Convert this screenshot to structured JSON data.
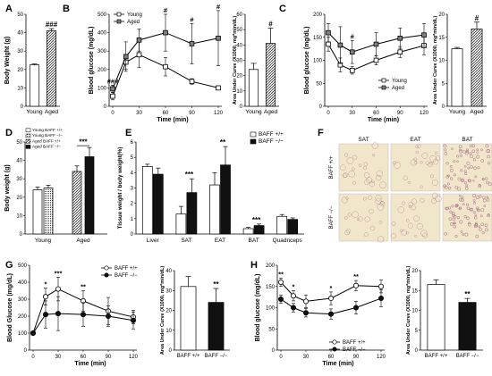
{
  "letters": {
    "A": "A",
    "B": "B",
    "C": "C",
    "D": "D",
    "E": "E",
    "F": "F",
    "G": "G",
    "H": "H"
  },
  "colors": {
    "white": "#ffffff",
    "black": "#111111",
    "grey": "#808080",
    "hatch": "#5a5a5a",
    "tissue": "#f1e6c9",
    "stain": "#a46a8a"
  },
  "panelA": {
    "type": "bar",
    "categories": [
      "Young",
      "Aged"
    ],
    "values": [
      22.5,
      41
    ],
    "errors": [
      0.5,
      1.2
    ],
    "ylabel": "Body Weight (g)",
    "ylim": [
      0,
      50
    ],
    "yticks": [
      0,
      10,
      20,
      30,
      40,
      50
    ],
    "annotations": [
      "",
      "###"
    ]
  },
  "panelB": {
    "type": "line",
    "x": [
      0,
      15,
      30,
      60,
      90,
      120
    ],
    "xlabel": "Time (min)",
    "ylabel": "Blood glucose (mg/dL)",
    "ylim": [
      0,
      500
    ],
    "yticks": [
      0,
      100,
      200,
      300,
      400,
      500
    ],
    "xticks": [
      0,
      30,
      60,
      90,
      120
    ],
    "series": [
      {
        "name": "Young",
        "values": [
          55,
          240,
          280,
          215,
          135,
          100
        ],
        "errors": [
          20,
          40,
          70,
          50,
          15,
          10
        ]
      },
      {
        "name": "Aged",
        "values": [
          95,
          270,
          360,
          400,
          340,
          370
        ],
        "errors": [
          20,
          80,
          60,
          100,
          110,
          150
        ]
      }
    ],
    "annotations": [
      "###",
      "",
      "",
      "#",
      "#",
      "#"
    ]
  },
  "panelB_auc": {
    "type": "bar",
    "categories": [
      "Young",
      "Aged"
    ],
    "values": [
      24,
      41
    ],
    "errors": [
      4,
      10
    ],
    "ylabel": "Area Under Curve (X1000, mg*min/dL)",
    "ylim": [
      0,
      60
    ],
    "yticks": [
      0,
      10,
      20,
      30,
      40,
      50,
      60
    ],
    "annotations": [
      "",
      "#"
    ]
  },
  "panelC": {
    "type": "line",
    "x": [
      0,
      15,
      30,
      60,
      90,
      120
    ],
    "xlabel": "Time (min)",
    "ylabel": "Blood glucose (mg/dL)",
    "ylim": [
      0,
      200
    ],
    "yticks": [
      0,
      50,
      100,
      150,
      200
    ],
    "xticks": [
      0,
      30,
      60,
      90,
      120
    ],
    "series": [
      {
        "name": "Young",
        "values": [
          135,
          90,
          78,
          100,
          118,
          132
        ],
        "errors": [
          15,
          15,
          8,
          10,
          12,
          20
        ]
      },
      {
        "name": "Aged",
        "values": [
          160,
          133,
          118,
          135,
          148,
          155
        ],
        "errors": [
          20,
          40,
          25,
          25,
          22,
          25
        ]
      }
    ],
    "annotations": [
      "",
      "",
      "#",
      "",
      "",
      ""
    ]
  },
  "panelC_auc": {
    "type": "bar",
    "categories": [
      "Young",
      "Aged"
    ],
    "values": [
      12.5,
      16.8
    ],
    "errors": [
      0.3,
      1.5
    ],
    "ylabel": "Area Under Curve (X1000, mg*min/dL)",
    "ylim": [
      0,
      20
    ],
    "yticks": [
      0,
      5,
      10,
      15,
      20
    ],
    "annotations": [
      "",
      "#"
    ]
  },
  "panelD": {
    "type": "bar",
    "groups": [
      "Young",
      "Aged"
    ],
    "ylabel": "Body weight (g)",
    "ylim": [
      0,
      50
    ],
    "yticks": [
      0,
      10,
      20,
      30,
      40,
      50
    ],
    "series": [
      {
        "name": "Young BAFF +/+",
        "values": [
          24,
          null
        ],
        "errors": [
          1.5,
          null
        ]
      },
      {
        "name": "Young BAFF −/−",
        "values": [
          25,
          null
        ],
        "errors": [
          1.5,
          null
        ]
      },
      {
        "name": "Aged BAFF +/+",
        "values": [
          null,
          34
        ],
        "errors": [
          null,
          3
        ]
      },
      {
        "name": "Aged BAFF −/−",
        "values": [
          null,
          42
        ],
        "errors": [
          null,
          5
        ]
      }
    ],
    "annotations": [
      "***"
    ]
  },
  "panelE": {
    "type": "bar",
    "categories": [
      "Liver",
      "SAT",
      "EAT",
      "BAT",
      "Quadriceps"
    ],
    "ylabel": "Tissue weight / body weight(%)",
    "ylim": [
      0,
      6
    ],
    "yticks": [
      0,
      1,
      2,
      3,
      4,
      5,
      6
    ],
    "series": [
      {
        "name": "BAFF +/+",
        "values": [
          4.4,
          1.3,
          3.2,
          0.35,
          1.15
        ],
        "errors": [
          0.15,
          0.5,
          0.8,
          0.08,
          0.12
        ]
      },
      {
        "name": "BAFF −/−",
        "values": [
          3.9,
          2.7,
          4.5,
          0.55,
          0.95
        ],
        "errors": [
          0.4,
          0.9,
          1.2,
          0.1,
          0.1
        ]
      }
    ],
    "annotations": [
      "",
      "***",
      "**",
      "***",
      ""
    ]
  },
  "panelF": {
    "columns": [
      "SAT",
      "EAT",
      "BAT"
    ],
    "rows": [
      "BAFF +/+",
      "BAFF −/−"
    ]
  },
  "panelG": {
    "type": "line",
    "x": [
      0,
      15,
      30,
      60,
      90,
      120
    ],
    "xlabel": "Time (min)",
    "ylabel": "Blood Glucose (mg/dL)",
    "ylim": [
      0,
      500
    ],
    "yticks": [
      0,
      100,
      200,
      300,
      400,
      500
    ],
    "xticks": [
      0,
      30,
      60,
      90,
      120
    ],
    "series": [
      {
        "name": "BAFF +/+",
        "values": [
          100,
          315,
          360,
          290,
          230,
          195
        ],
        "errors": [
          10,
          50,
          70,
          60,
          80,
          40
        ]
      },
      {
        "name": "BAFF −/−",
        "values": [
          100,
          210,
          215,
          210,
          200,
          175
        ],
        "errors": [
          10,
          80,
          100,
          70,
          60,
          50
        ]
      }
    ],
    "annotations": [
      "",
      "*",
      "***",
      "**",
      "",
      ""
    ]
  },
  "panelG_auc": {
    "type": "bar",
    "categories": [
      "BAFF +/+",
      "BAFF −/−"
    ],
    "values": [
      32,
      24
    ],
    "errors": [
      5,
      7
    ],
    "ylabel": "Area Under Curve (X1000, mg*min/dL)",
    "ylim": [
      0,
      40
    ],
    "yticks": [
      0,
      10,
      20,
      30,
      40
    ],
    "annotations": [
      "",
      "**"
    ]
  },
  "panelH": {
    "type": "line",
    "x": [
      0,
      15,
      30,
      60,
      90,
      120
    ],
    "xlabel": "Time (min)",
    "ylabel": "Blood glucose (mg/dL)",
    "ylim": [
      0,
      200
    ],
    "yticks": [
      0,
      50,
      100,
      150,
      200
    ],
    "xticks": [
      0,
      30,
      60,
      90,
      120
    ],
    "series": [
      {
        "name": "BAFF +/+",
        "values": [
          160,
          128,
          115,
          122,
          152,
          150
        ],
        "errors": [
          10,
          12,
          15,
          15,
          12,
          15
        ]
      },
      {
        "name": "BAFF −/−",
        "values": [
          120,
          100,
          88,
          85,
          100,
          122
        ],
        "errors": [
          10,
          10,
          10,
          12,
          15,
          20
        ]
      }
    ],
    "annotations": [
      "**",
      "*",
      "",
      "*",
      "**",
      ""
    ]
  },
  "panelH_auc": {
    "type": "bar",
    "categories": [
      "BAFF +/+",
      "BAFF −/−"
    ],
    "values": [
      16.5,
      12
    ],
    "errors": [
      1.2,
      1
    ],
    "ylabel": "Area Under Curve (X1000, mg*min/dL)",
    "ylim": [
      0,
      20
    ],
    "yticks": [
      0,
      5,
      10,
      15,
      20
    ],
    "annotations": [
      "",
      "**"
    ]
  }
}
